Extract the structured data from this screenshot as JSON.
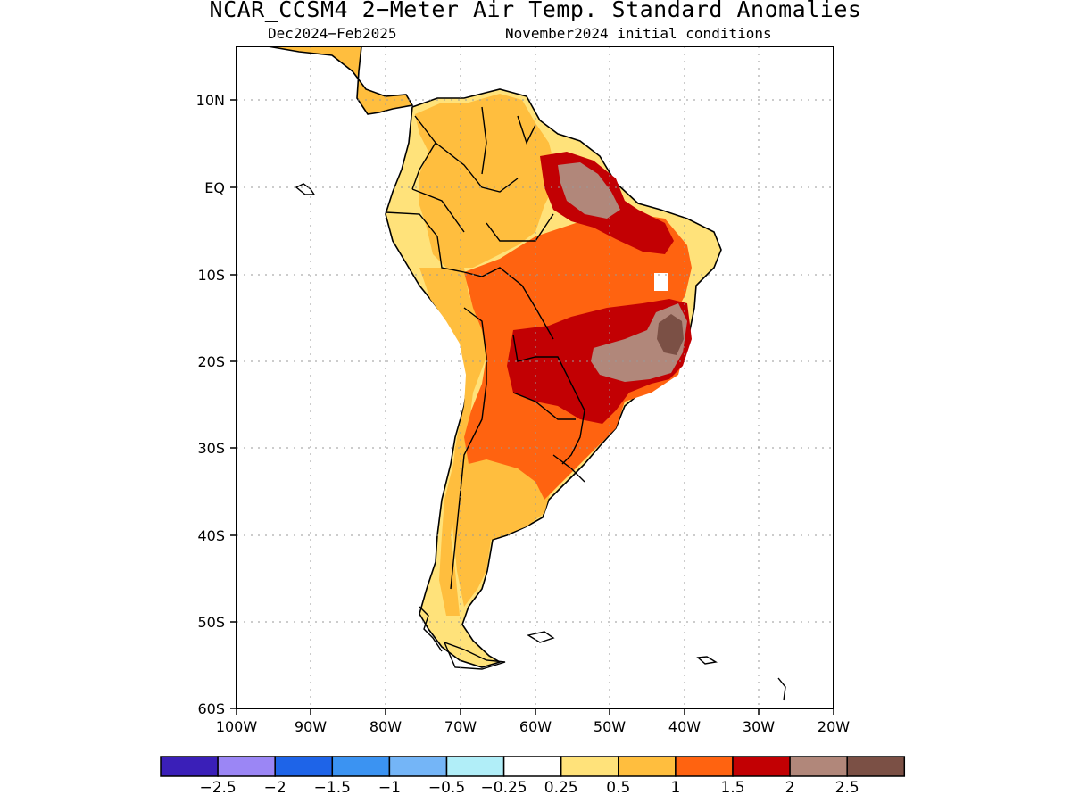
{
  "title": "NCAR_CCSM4 2−Meter Air Temp. Standard Anomalies",
  "subtitle_left": "Dec2024−Feb2025",
  "subtitle_right": "November2024 initial conditions",
  "map": {
    "lat_labels": [
      "10N",
      "EQ",
      "10S",
      "20S",
      "30S",
      "40S",
      "50S",
      "60S"
    ],
    "lon_labels": [
      "100W",
      "90W",
      "80W",
      "70W",
      "60W",
      "50W",
      "40W",
      "30W",
      "20W"
    ],
    "extent": {
      "lon": [
        -100,
        -20
      ],
      "lat": [
        -60,
        16
      ]
    },
    "grid": "dotted"
  },
  "colorbar": {
    "colors": [
      "#3a1fb8",
      "#9b86f5",
      "#1e64e8",
      "#3b93f2",
      "#74b5f7",
      "#b1eef8",
      "#ffffff",
      "#ffe27a",
      "#ffbe3e",
      "#ff6310",
      "#c20003",
      "#b1877a",
      "#7b5045"
    ],
    "labels": [
      "−2.5",
      "−2",
      "−1.5",
      "−1",
      "−0.5",
      "−0.25",
      "0.25",
      "0.5",
      "1",
      "1.5",
      "2",
      "2.5"
    ]
  },
  "anomaly_colors": {
    "land_base": "#ffe27a",
    "level_05": "#ffbe3e",
    "level_1": "#ff6310",
    "level_15": "#c20003",
    "level_2": "#b1877a",
    "level_25": "#7b5045"
  }
}
